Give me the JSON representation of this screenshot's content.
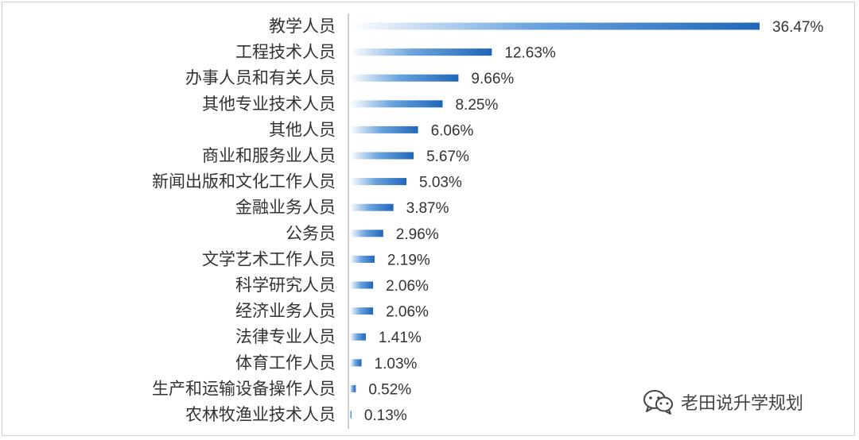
{
  "chart_data": {
    "type": "bar",
    "orientation": "horizontal",
    "title": "",
    "xlabel": "",
    "ylabel": "",
    "xlim": [
      0,
      40
    ],
    "grid": false,
    "legend": "none",
    "bar_color": "#2e75c6",
    "categories": [
      "教学人员",
      "工程技术人员",
      "办事人员和有关人员",
      "其他专业技术人员",
      "其他人员",
      "商业和服务业人员",
      "新闻出版和文化工作人员",
      "金融业务人员",
      "公务员",
      "文学艺术工作人员",
      "科学研究人员",
      "经济业务人员",
      "法律专业人员",
      "体育工作人员",
      "生产和运输设备操作人员",
      "农林牧渔业技术人员"
    ],
    "values": [
      36.47,
      12.63,
      9.66,
      8.25,
      6.06,
      5.67,
      5.03,
      3.87,
      2.96,
      2.19,
      2.06,
      2.06,
      1.41,
      1.03,
      0.52,
      0.13
    ],
    "data_labels": [
      "36.47%",
      "12.63%",
      "9.66%",
      "8.25%",
      "6.06%",
      "5.67%",
      "5.03%",
      "3.87%",
      "2.96%",
      "2.19%",
      "2.06%",
      "2.06%",
      "1.41%",
      "1.03%",
      "0.52%",
      "0.13%"
    ]
  },
  "watermark": {
    "icon": "wechat-icon",
    "text": "老田说升学规划"
  }
}
